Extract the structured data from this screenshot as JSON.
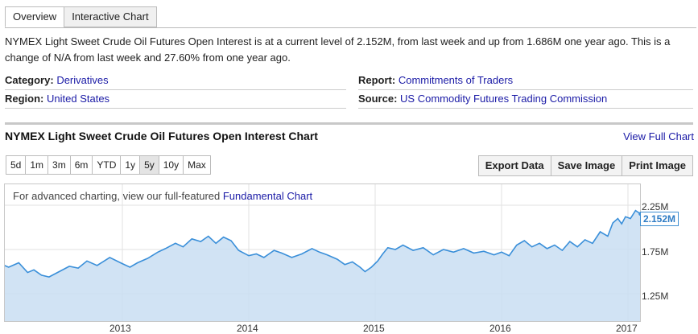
{
  "tabs": [
    {
      "label": "Overview",
      "active": true
    },
    {
      "label": "Interactive Chart",
      "active": false
    }
  ],
  "summary": "NYMEX Light Sweet Crude Oil Futures Open Interest is at a current level of 2.152M, from last week and up from 1.686M one year ago. This is a change of N/A from last week and 27.60% from one year ago.",
  "meta": {
    "category_key": "Category:",
    "category_value": "Derivatives",
    "region_key": "Region:",
    "region_value": "United States",
    "report_key": "Report:",
    "report_value": "Commitments of Traders",
    "source_key": "Source:",
    "source_value": "US Commodity Futures Trading Commission"
  },
  "chart_header": {
    "title": "NYMEX Light Sweet Crude Oil Futures Open Interest Chart",
    "view_full": "View Full Chart"
  },
  "ranges": [
    "5d",
    "1m",
    "3m",
    "6m",
    "YTD",
    "1y",
    "5y",
    "10y",
    "Max"
  ],
  "active_range": "5y",
  "actions": [
    "Export Data",
    "Save Image",
    "Print Image"
  ],
  "chart_note": {
    "prefix": "For advanced charting, view our full-featured ",
    "link": "Fundamental Chart"
  },
  "colors": {
    "line": "#3a8fd9",
    "fill": "#c9def2",
    "link": "#1a1aa6"
  },
  "chart_data": {
    "type": "area",
    "title": "NYMEX Light Sweet Crude Oil Futures Open Interest Chart",
    "xlabel": "",
    "ylabel": "",
    "x_ticks": [
      "2013",
      "2014",
      "2015",
      "2016",
      "2017"
    ],
    "y_ticks": [
      "1.25M",
      "1.75M",
      "2.25M"
    ],
    "ylim": [
      1.0,
      2.5
    ],
    "grid": true,
    "current_value_label": "2.152M",
    "series": [
      {
        "values": [
          [
            2012.0,
            1.45
          ],
          [
            2012.05,
            1.58
          ],
          [
            2012.1,
            1.55
          ],
          [
            2012.18,
            1.6
          ],
          [
            2012.25,
            1.49
          ],
          [
            2012.3,
            1.52
          ],
          [
            2012.36,
            1.46
          ],
          [
            2012.42,
            1.44
          ],
          [
            2012.5,
            1.5
          ],
          [
            2012.58,
            1.56
          ],
          [
            2012.65,
            1.54
          ],
          [
            2012.72,
            1.62
          ],
          [
            2012.8,
            1.57
          ],
          [
            2012.9,
            1.66
          ],
          [
            2013.0,
            1.59
          ],
          [
            2013.06,
            1.55
          ],
          [
            2013.12,
            1.6
          ],
          [
            2013.2,
            1.65
          ],
          [
            2013.28,
            1.72
          ],
          [
            2013.34,
            1.76
          ],
          [
            2013.42,
            1.82
          ],
          [
            2013.48,
            1.78
          ],
          [
            2013.55,
            1.87
          ],
          [
            2013.62,
            1.84
          ],
          [
            2013.68,
            1.9
          ],
          [
            2013.74,
            1.82
          ],
          [
            2013.8,
            1.89
          ],
          [
            2013.86,
            1.85
          ],
          [
            2013.92,
            1.74
          ],
          [
            2014.0,
            1.68
          ],
          [
            2014.06,
            1.7
          ],
          [
            2014.12,
            1.66
          ],
          [
            2014.2,
            1.74
          ],
          [
            2014.26,
            1.71
          ],
          [
            2014.34,
            1.66
          ],
          [
            2014.42,
            1.7
          ],
          [
            2014.5,
            1.76
          ],
          [
            2014.56,
            1.72
          ],
          [
            2014.62,
            1.69
          ],
          [
            2014.7,
            1.64
          ],
          [
            2014.76,
            1.58
          ],
          [
            2014.82,
            1.61
          ],
          [
            2014.88,
            1.55
          ],
          [
            2014.92,
            1.5
          ],
          [
            2014.97,
            1.55
          ],
          [
            2015.02,
            1.62
          ],
          [
            2015.06,
            1.7
          ],
          [
            2015.1,
            1.77
          ],
          [
            2015.16,
            1.75
          ],
          [
            2015.22,
            1.8
          ],
          [
            2015.3,
            1.74
          ],
          [
            2015.38,
            1.77
          ],
          [
            2015.46,
            1.69
          ],
          [
            2015.54,
            1.75
          ],
          [
            2015.62,
            1.72
          ],
          [
            2015.7,
            1.76
          ],
          [
            2015.78,
            1.71
          ],
          [
            2015.86,
            1.73
          ],
          [
            2015.94,
            1.69
          ],
          [
            2016.0,
            1.72
          ],
          [
            2016.06,
            1.68
          ],
          [
            2016.12,
            1.8
          ],
          [
            2016.18,
            1.85
          ],
          [
            2016.24,
            1.78
          ],
          [
            2016.3,
            1.82
          ],
          [
            2016.36,
            1.76
          ],
          [
            2016.42,
            1.8
          ],
          [
            2016.48,
            1.74
          ],
          [
            2016.54,
            1.84
          ],
          [
            2016.6,
            1.78
          ],
          [
            2016.66,
            1.86
          ],
          [
            2016.72,
            1.82
          ],
          [
            2016.78,
            1.95
          ],
          [
            2016.84,
            1.9
          ],
          [
            2016.88,
            2.05
          ],
          [
            2016.92,
            2.1
          ],
          [
            2016.95,
            2.04
          ],
          [
            2016.98,
            2.12
          ],
          [
            2017.02,
            2.1
          ],
          [
            2017.06,
            2.19
          ],
          [
            2017.1,
            2.152
          ]
        ]
      }
    ]
  }
}
